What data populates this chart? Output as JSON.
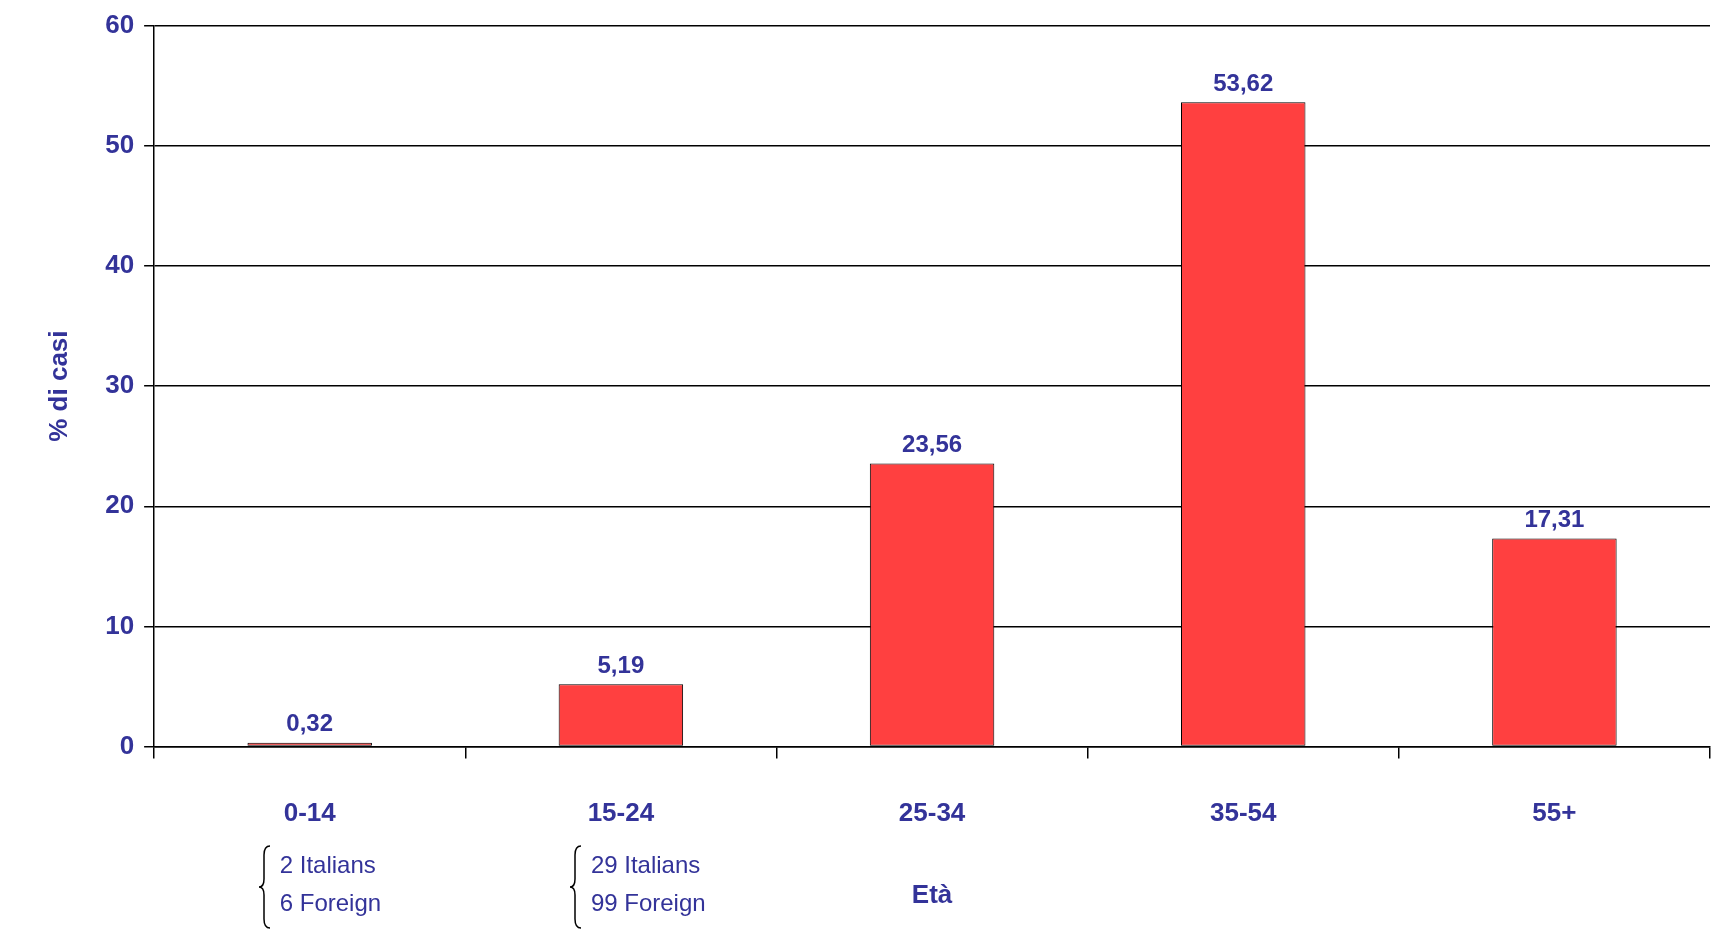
{
  "chart_data": {
    "type": "bar",
    "xlabel": "Età",
    "ylabel": "% di casi",
    "categories": [
      "0-14",
      "15-24",
      "25-34",
      "35-54",
      "55+"
    ],
    "values": [
      0.32,
      5.19,
      23.56,
      53.62,
      17.31
    ],
    "value_labels": [
      "0,32",
      "5,19",
      "23,56",
      "53,62",
      "17,31"
    ],
    "color": "#ff4040",
    "ylim": [
      0,
      60
    ],
    "yticks": [
      0,
      10,
      20,
      30,
      40,
      50,
      60
    ],
    "grid": "y",
    "annotations": [
      "2 Italians\n6 Foreign",
      "29 Italians\n99 Foreign"
    ]
  }
}
